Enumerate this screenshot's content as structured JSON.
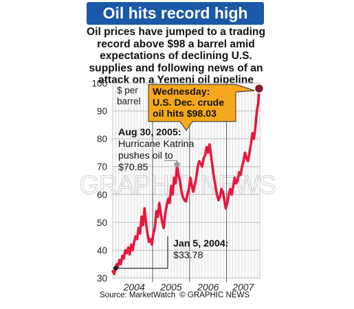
{
  "title": "Oil hits record high",
  "intro": "Oil prices have jumped to a trading record above $98 a barrel amid expectations of declining U.S. supplies and following news of an attack on a Yemeni oil pipeline",
  "source": "Source: MarketWatch",
  "credit": "© GRAPHIC NEWS",
  "watermark": "GRAPHIC NEWS",
  "colors": {
    "banner": "#1b58a8",
    "line": "#e8173d",
    "callout": "#f5a81c",
    "endpoint": "#8b1a2c",
    "grid": "#d8d8d8"
  },
  "chart_data": {
    "type": "line",
    "unit_label": "$ per barrel",
    "x_tick_labels": [
      "2004",
      "2005",
      "2006",
      "2007"
    ],
    "y_ticks": [
      30,
      40,
      50,
      60,
      70,
      80,
      90,
      100
    ],
    "ylim": [
      30,
      100
    ],
    "xlim": [
      2003.92,
      2007.9
    ],
    "grid": true,
    "series": [
      {
        "x": [
          2003.92,
          2003.96,
          2004.0,
          2004.03,
          2004.06,
          2004.1,
          2004.14,
          2004.18,
          2004.22,
          2004.26,
          2004.3,
          2004.34,
          2004.38,
          2004.42,
          2004.46,
          2004.5,
          2004.54,
          2004.58,
          2004.62,
          2004.66,
          2004.7,
          2004.74,
          2004.78,
          2004.82,
          2004.86,
          2004.9,
          2004.94,
          2004.98,
          2005.02,
          2005.06,
          2005.1,
          2005.14,
          2005.18,
          2005.22,
          2005.26,
          2005.3,
          2005.34,
          2005.38,
          2005.42,
          2005.46,
          2005.5,
          2005.54,
          2005.58,
          2005.62,
          2005.66,
          2005.7,
          2005.74,
          2005.78,
          2005.82,
          2005.86,
          2005.9,
          2005.94,
          2005.98,
          2006.02,
          2006.06,
          2006.1,
          2006.14,
          2006.18,
          2006.22,
          2006.26,
          2006.3,
          2006.34,
          2006.38,
          2006.42,
          2006.46,
          2006.5,
          2006.54,
          2006.58,
          2006.62,
          2006.66,
          2006.7,
          2006.74,
          2006.78,
          2006.82,
          2006.86,
          2006.9,
          2006.94,
          2006.98,
          2007.02,
          2007.06,
          2007.1,
          2007.14,
          2007.18,
          2007.22,
          2007.26,
          2007.3,
          2007.34,
          2007.38,
          2007.42,
          2007.46,
          2007.5,
          2007.54,
          2007.58,
          2007.62,
          2007.66,
          2007.7,
          2007.74,
          2007.78,
          2007.82,
          2007.86,
          2007.88
        ],
        "y": [
          32.5,
          31.5,
          33.8,
          35.0,
          34.0,
          36.5,
          35.0,
          38.0,
          37.0,
          40.0,
          39.0,
          41.0,
          38.5,
          42.0,
          40.0,
          43.0,
          45.0,
          44.0,
          48.0,
          46.0,
          52.0,
          49.0,
          55.0,
          50.0,
          46.0,
          43.0,
          44.0,
          42.0,
          46.0,
          48.0,
          54.0,
          52.0,
          57.0,
          53.0,
          50.0,
          48.0,
          53.0,
          56.0,
          58.5,
          57.0,
          63.0,
          60.0,
          66.0,
          64.0,
          70.8,
          67.0,
          65.0,
          61.0,
          59.0,
          58.0,
          57.5,
          60.0,
          62.0,
          66.0,
          63.0,
          61.0,
          63.5,
          66.0,
          70.0,
          72.0,
          71.0,
          70.0,
          73.0,
          74.0,
          77.0,
          75.0,
          78.0,
          74.0,
          70.0,
          66.0,
          63.0,
          60.0,
          58.0,
          59.0,
          62.0,
          61.0,
          58.0,
          55.0,
          57.0,
          60.0,
          62.0,
          60.0,
          63.0,
          66.0,
          64.0,
          65.0,
          68.0,
          67.0,
          70.0,
          72.0,
          75.0,
          73.0,
          72.0,
          75.0,
          78.0,
          82.0,
          80.0,
          84.0,
          90.0,
          93.0,
          98.03
        ]
      }
    ],
    "annotations": [
      {
        "id": "katrina",
        "x": 2005.66,
        "y": 70.85,
        "lines": [
          "Aug 30, 2005:",
          "Hurricane Katrina",
          "pushes oil to",
          "$70.85"
        ]
      },
      {
        "id": "start",
        "x": 2004.0,
        "y": 33.78,
        "lines": [
          "Jan 5, 2004:",
          "$33.78"
        ]
      },
      {
        "id": "record",
        "x": 2007.88,
        "y": 98.03,
        "lines": [
          "Wednesday:",
          "U.S. Dec. crude",
          "oil hits $98.03"
        ]
      }
    ]
  }
}
